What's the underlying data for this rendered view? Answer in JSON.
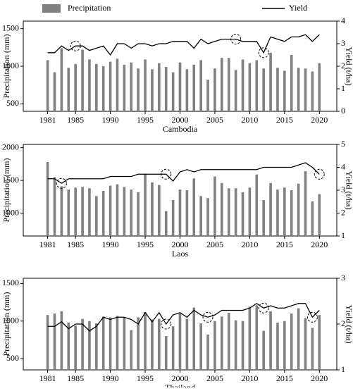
{
  "chart_data": [
    {
      "type": "bar_line",
      "xlabel": "Cambodia",
      "ylabel": "Precipitation (mm)",
      "y2label": "Yield (t/ha)",
      "x": [
        1981,
        1982,
        1983,
        1984,
        1985,
        1986,
        1987,
        1988,
        1989,
        1990,
        1991,
        1992,
        1993,
        1994,
        1995,
        1996,
        1997,
        1998,
        1999,
        2000,
        2001,
        2002,
        2003,
        2004,
        2005,
        2006,
        2007,
        2008,
        2009,
        2010,
        2011,
        2012,
        2013,
        2014,
        2015,
        2016,
        2017,
        2018,
        2019,
        2020
      ],
      "xlim": [
        1977.5,
        2022.5
      ],
      "xticks": [
        1981,
        1985,
        1990,
        1995,
        2000,
        2005,
        2010,
        2015,
        2020
      ],
      "ylim": [
        400,
        1600
      ],
      "yticks": [
        500,
        1000,
        1500
      ],
      "y2lim": [
        0,
        4
      ],
      "y2ticks": [
        0,
        1,
        2,
        3,
        4
      ],
      "circled": [
        1985,
        2008,
        2012
      ],
      "series": [
        {
          "name": "Precipitation",
          "color": "#808080",
          "values": [
            1080,
            920,
            1240,
            980,
            1030,
            1220,
            1090,
            1030,
            1000,
            1060,
            1100,
            1020,
            1050,
            970,
            1090,
            960,
            1040,
            990,
            920,
            1050,
            960,
            1020,
            1080,
            820,
            970,
            1110,
            1110,
            950,
            1090,
            1040,
            1080,
            970,
            1180,
            980,
            940,
            1150,
            980,
            970,
            930,
            1040
          ]
        },
        {
          "name": "Yield",
          "color": "#000000",
          "axis": "y2",
          "values": [
            2.6,
            2.6,
            2.9,
            2.7,
            2.9,
            2.9,
            2.7,
            2.8,
            2.9,
            2.5,
            3.0,
            3.0,
            2.8,
            3.0,
            3.0,
            2.9,
            3.0,
            3.0,
            3.1,
            3.1,
            3.1,
            2.8,
            3.2,
            3.0,
            3.1,
            3.2,
            3.2,
            3.2,
            3.1,
            3.1,
            3.1,
            2.6,
            3.3,
            3.2,
            3.1,
            3.3,
            3.3,
            3.4,
            3.1,
            3.4
          ]
        }
      ]
    },
    {
      "type": "bar_line",
      "xlabel": "Laos",
      "ylabel": "Precipitation (mm)",
      "y2label": "Yield (t/ha)",
      "x": [
        1981,
        1982,
        1983,
        1984,
        1985,
        1986,
        1987,
        1988,
        1989,
        1990,
        1991,
        1992,
        1993,
        1994,
        1995,
        1996,
        1997,
        1998,
        1999,
        2000,
        2001,
        2002,
        2003,
        2004,
        2005,
        2006,
        2007,
        2008,
        2009,
        2010,
        2011,
        2012,
        2013,
        2014,
        2015,
        2016,
        2017,
        2018,
        2019,
        2020
      ],
      "xlim": [
        1977.5,
        2022.5
      ],
      "xticks": [
        1981,
        1985,
        1990,
        1995,
        2000,
        2005,
        2010,
        2015,
        2020
      ],
      "ylim": [
        650,
        2050
      ],
      "yticks": [
        1000,
        1500,
        2000
      ],
      "y2lim": [
        1,
        5
      ],
      "y2ticks": [
        1,
        2,
        3,
        4,
        5
      ],
      "circled": [
        1983,
        1998,
        2020
      ],
      "series": [
        {
          "color": "#808080",
          "values": [
            1780,
            1550,
            1410,
            1360,
            1390,
            1400,
            1380,
            1260,
            1340,
            1420,
            1440,
            1400,
            1360,
            1320,
            1600,
            1470,
            1430,
            1030,
            1200,
            1360,
            1350,
            1530,
            1260,
            1230,
            1560,
            1460,
            1380,
            1380,
            1320,
            1390,
            1590,
            1200,
            1460,
            1360,
            1390,
            1350,
            1450,
            1640,
            1180,
            1290
          ]
        },
        {
          "color": "#000000",
          "axis": "y2",
          "values": [
            3.5,
            3.5,
            3.3,
            3.5,
            3.5,
            3.5,
            3.5,
            3.5,
            3.5,
            3.6,
            3.6,
            3.6,
            3.6,
            3.7,
            3.7,
            3.7,
            3.7,
            3.7,
            3.4,
            3.8,
            3.9,
            3.8,
            3.9,
            3.9,
            3.9,
            3.9,
            3.9,
            3.9,
            3.9,
            3.9,
            3.9,
            4.0,
            4.0,
            4.0,
            4.0,
            4.0,
            4.1,
            4.2,
            4.0,
            3.7
          ]
        }
      ]
    },
    {
      "type": "bar_line",
      "xlabel": "Thailand",
      "ylabel": "Precipitation (mm)",
      "y2label": "Yield (t/ha)",
      "x": [
        1981,
        1982,
        1983,
        1984,
        1985,
        1986,
        1987,
        1988,
        1989,
        1990,
        1991,
        1992,
        1993,
        1994,
        1995,
        1996,
        1997,
        1998,
        1999,
        2000,
        2001,
        2002,
        2003,
        2004,
        2005,
        2006,
        2007,
        2008,
        2009,
        2010,
        2011,
        2012,
        2013,
        2014,
        2015,
        2016,
        2017,
        2018,
        2019,
        2020
      ],
      "xlim": [
        1977.5,
        2022.5
      ],
      "xticks": [
        1981,
        1985,
        1990,
        1995,
        2000,
        2005,
        2010,
        2015,
        2020
      ],
      "ylim": [
        350,
        1570
      ],
      "yticks": [
        500,
        1000,
        1500
      ],
      "y2lim": [
        1,
        3
      ],
      "y2ticks": [
        1,
        2,
        3
      ],
      "circled": [
        1998,
        2004,
        2012,
        2019
      ],
      "series": [
        {
          "color": "#808080",
          "values": [
            1080,
            1100,
            1130,
            980,
            940,
            1030,
            1000,
            970,
            1060,
            1050,
            1070,
            1050,
            880,
            1050,
            1120,
            1020,
            1030,
            800,
            930,
            1100,
            1030,
            1180,
            970,
            820,
            1000,
            1060,
            1110,
            1010,
            1000,
            1190,
            1210,
            870,
            1130,
            980,
            1000,
            1100,
            1170,
            1040,
            910,
            1080
          ]
        },
        {
          "color": "#000000",
          "axis": "y2",
          "values": [
            1.95,
            1.95,
            2.05,
            1.9,
            2.0,
            2.0,
            1.85,
            1.95,
            2.15,
            2.1,
            2.15,
            2.15,
            2.1,
            2.0,
            2.25,
            2.05,
            2.25,
            2.0,
            2.2,
            2.25,
            2.15,
            2.3,
            2.2,
            2.15,
            2.2,
            2.3,
            2.3,
            2.3,
            2.3,
            2.35,
            2.45,
            2.35,
            2.4,
            2.35,
            2.35,
            2.4,
            2.45,
            2.45,
            2.15,
            2.3
          ]
        }
      ]
    }
  ]
}
